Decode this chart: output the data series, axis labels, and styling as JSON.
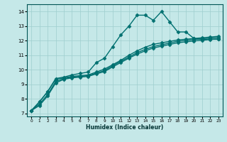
{
  "xlabel": "Humidex (Indice chaleur)",
  "xlim": [
    -0.5,
    23.5
  ],
  "ylim": [
    6.8,
    14.5
  ],
  "yticks": [
    7,
    8,
    9,
    10,
    11,
    12,
    13,
    14
  ],
  "xticks": [
    0,
    1,
    2,
    3,
    4,
    5,
    6,
    7,
    8,
    9,
    10,
    11,
    12,
    13,
    14,
    15,
    16,
    17,
    18,
    19,
    20,
    21,
    22,
    23
  ],
  "background_color": "#c5e8e8",
  "grid_color": "#9ecece",
  "line_color": "#007070",
  "series": [
    {
      "x": [
        0,
        1,
        2,
        3,
        4,
        5,
        6,
        7,
        8,
        9,
        10,
        11,
        12,
        13,
        14,
        15,
        16,
        17,
        18,
        19,
        20,
        21,
        22,
        23
      ],
      "y": [
        7.2,
        7.8,
        8.5,
        9.4,
        9.5,
        9.65,
        9.75,
        9.85,
        10.5,
        10.8,
        11.6,
        12.4,
        13.0,
        13.75,
        13.75,
        13.4,
        14.0,
        13.3,
        12.6,
        12.6,
        12.15,
        12.1,
        12.1,
        12.1
      ],
      "marker": "D",
      "markersize": 2.5,
      "linewidth": 1.0
    },
    {
      "x": [
        0,
        1,
        2,
        3,
        4,
        5,
        6,
        7,
        8,
        9,
        10,
        11,
        12,
        13,
        14,
        15,
        16,
        17,
        18,
        19,
        20,
        21,
        22,
        23
      ],
      "y": [
        7.2,
        7.8,
        8.5,
        9.35,
        9.45,
        9.55,
        9.6,
        9.65,
        9.85,
        10.05,
        10.35,
        10.65,
        11.0,
        11.3,
        11.55,
        11.75,
        11.85,
        11.95,
        12.05,
        12.1,
        12.15,
        12.2,
        12.25,
        12.3
      ],
      "marker": "D",
      "markersize": 2.5,
      "linewidth": 1.0
    },
    {
      "x": [
        0,
        1,
        2,
        3,
        4,
        5,
        6,
        7,
        8,
        9,
        10,
        11,
        12,
        13,
        14,
        15,
        16,
        17,
        18,
        19,
        20,
        21,
        22,
        23
      ],
      "y": [
        7.2,
        7.65,
        8.3,
        9.2,
        9.4,
        9.5,
        9.55,
        9.6,
        9.78,
        9.95,
        10.28,
        10.58,
        10.88,
        11.18,
        11.4,
        11.6,
        11.72,
        11.84,
        11.96,
        12.02,
        12.08,
        12.13,
        12.18,
        12.22
      ],
      "marker": "D",
      "markersize": 2.5,
      "linewidth": 1.0
    },
    {
      "x": [
        0,
        1,
        2,
        3,
        4,
        5,
        6,
        7,
        8,
        9,
        10,
        11,
        12,
        13,
        14,
        15,
        16,
        17,
        18,
        19,
        20,
        21,
        22,
        23
      ],
      "y": [
        7.2,
        7.55,
        8.2,
        9.1,
        9.35,
        9.45,
        9.5,
        9.55,
        9.72,
        9.88,
        10.2,
        10.5,
        10.8,
        11.08,
        11.3,
        11.5,
        11.62,
        11.74,
        11.86,
        11.92,
        11.98,
        12.03,
        12.08,
        12.12
      ],
      "marker": "D",
      "markersize": 2.5,
      "linewidth": 1.0
    }
  ]
}
